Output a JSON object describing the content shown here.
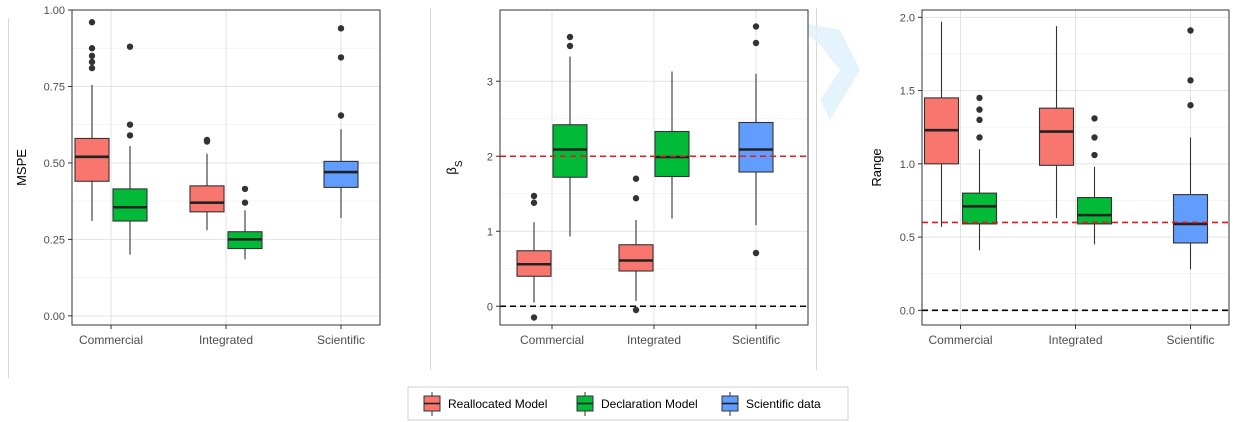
{
  "colors": {
    "reallocated": "#F8766D",
    "declaration": "#00BA38",
    "scientific": "#619CFF",
    "red_ref": "#E41A1C",
    "black_ref": "#000000"
  },
  "legend": {
    "items": [
      {
        "label": "Reallocated Model",
        "color": "#F8766D"
      },
      {
        "label": "Declaration Model",
        "color": "#00BA38"
      },
      {
        "label": "Scientific data",
        "color": "#619CFF"
      }
    ]
  },
  "chart_data": [
    {
      "type": "box",
      "ylabel": "MSPE",
      "categories": [
        "Commercial",
        "Integrated",
        "Scientific"
      ],
      "ylim": [
        -0.03,
        1.0
      ],
      "yticks": [
        0.0,
        0.25,
        0.5,
        0.75,
        1.0
      ],
      "ytick_labels": [
        "0.00",
        "0.25",
        "0.50",
        "0.75",
        "1.00"
      ],
      "grid": true,
      "ref_lines": [],
      "boxes": [
        {
          "category": "Commercial",
          "series": "Reallocated Model",
          "offset": -1,
          "min": 0.31,
          "q1": 0.44,
          "median": 0.52,
          "q3": 0.58,
          "max": 0.755,
          "outliers": [
            0.81,
            0.83,
            0.85,
            0.875,
            0.96
          ]
        },
        {
          "category": "Commercial",
          "series": "Declaration Model",
          "offset": 1,
          "min": 0.2,
          "q1": 0.31,
          "median": 0.355,
          "q3": 0.415,
          "max": 0.555,
          "outliers": [
            0.59,
            0.625,
            0.88
          ]
        },
        {
          "category": "Integrated",
          "series": "Reallocated Model",
          "offset": -1,
          "min": 0.28,
          "q1": 0.34,
          "median": 0.37,
          "q3": 0.425,
          "max": 0.53,
          "outliers": [
            0.57,
            0.575
          ]
        },
        {
          "category": "Integrated",
          "series": "Declaration Model",
          "offset": 1,
          "min": 0.185,
          "q1": 0.22,
          "median": 0.25,
          "q3": 0.275,
          "max": 0.345,
          "outliers": [
            0.37,
            0.415
          ]
        },
        {
          "category": "Scientific",
          "series": "Scientific data",
          "offset": 0,
          "min": 0.32,
          "q1": 0.42,
          "median": 0.47,
          "q3": 0.505,
          "max": 0.61,
          "outliers": [
            0.655,
            0.845,
            0.94
          ]
        }
      ]
    },
    {
      "type": "box",
      "ylabel": "β",
      "ylabel_sub": "S",
      "categories": [
        "Commercial",
        "Integrated",
        "Scientific"
      ],
      "ylim": [
        -0.25,
        3.95
      ],
      "yticks": [
        0,
        1,
        2,
        3
      ],
      "ytick_labels": [
        "0",
        "1",
        "2",
        "3"
      ],
      "grid": true,
      "ref_lines": [
        {
          "y": 2,
          "color": "red"
        },
        {
          "y": 0,
          "color": "black"
        }
      ],
      "boxes": [
        {
          "category": "Commercial",
          "series": "Reallocated Model",
          "offset": -1,
          "min": 0.05,
          "q1": 0.4,
          "median": 0.56,
          "q3": 0.74,
          "max": 1.12,
          "outliers": [
            -0.15,
            1.38,
            1.47
          ]
        },
        {
          "category": "Commercial",
          "series": "Declaration Model",
          "offset": 1,
          "min": 0.93,
          "q1": 1.72,
          "median": 2.09,
          "q3": 2.42,
          "max": 3.33,
          "outliers": [
            3.47,
            3.59
          ]
        },
        {
          "category": "Integrated",
          "series": "Reallocated Model",
          "offset": -1,
          "min": 0.07,
          "q1": 0.47,
          "median": 0.61,
          "q3": 0.82,
          "max": 1.15,
          "outliers": [
            -0.05,
            1.44,
            1.7
          ]
        },
        {
          "category": "Integrated",
          "series": "Declaration Model",
          "offset": 1,
          "min": 1.17,
          "q1": 1.73,
          "median": 1.99,
          "q3": 2.33,
          "max": 3.13,
          "outliers": []
        },
        {
          "category": "Scientific",
          "series": "Scientific data",
          "offset": 0,
          "min": 1.08,
          "q1": 1.79,
          "median": 2.09,
          "q3": 2.45,
          "max": 3.1,
          "outliers": [
            0.71,
            3.51,
            3.73
          ]
        }
      ]
    },
    {
      "type": "box",
      "ylabel": "Range",
      "categories": [
        "Commercial",
        "Integrated",
        "Scientific"
      ],
      "ylim": [
        -0.1,
        2.05
      ],
      "yticks": [
        0.0,
        0.5,
        1.0,
        1.5,
        2.0
      ],
      "ytick_labels": [
        "0.0",
        "0.5",
        "1.0",
        "1.5",
        "2.0"
      ],
      "grid": true,
      "ref_lines": [
        {
          "y": 0.6,
          "color": "red"
        },
        {
          "y": 0,
          "color": "black"
        }
      ],
      "boxes": [
        {
          "category": "Commercial",
          "series": "Reallocated Model",
          "offset": -1,
          "min": 0.57,
          "q1": 1.0,
          "median": 1.23,
          "q3": 1.45,
          "max": 1.97,
          "outliers": []
        },
        {
          "category": "Commercial",
          "series": "Declaration Model",
          "offset": 1,
          "min": 0.41,
          "q1": 0.59,
          "median": 0.71,
          "q3": 0.8,
          "max": 1.1,
          "outliers": [
            1.18,
            1.3,
            1.37,
            1.45
          ]
        },
        {
          "category": "Integrated",
          "series": "Reallocated Model",
          "offset": -1,
          "min": 0.63,
          "q1": 0.99,
          "median": 1.22,
          "q3": 1.38,
          "max": 1.94,
          "outliers": []
        },
        {
          "category": "Integrated",
          "series": "Declaration Model",
          "offset": 1,
          "min": 0.45,
          "q1": 0.59,
          "median": 0.65,
          "q3": 0.77,
          "max": 0.98,
          "outliers": [
            1.06,
            1.18,
            1.31
          ]
        },
        {
          "category": "Scientific",
          "series": "Scientific data",
          "offset": 0,
          "min": 0.28,
          "q1": 0.46,
          "median": 0.59,
          "q3": 0.79,
          "max": 1.18,
          "outliers": [
            1.4,
            1.57,
            1.91
          ]
        }
      ]
    }
  ]
}
